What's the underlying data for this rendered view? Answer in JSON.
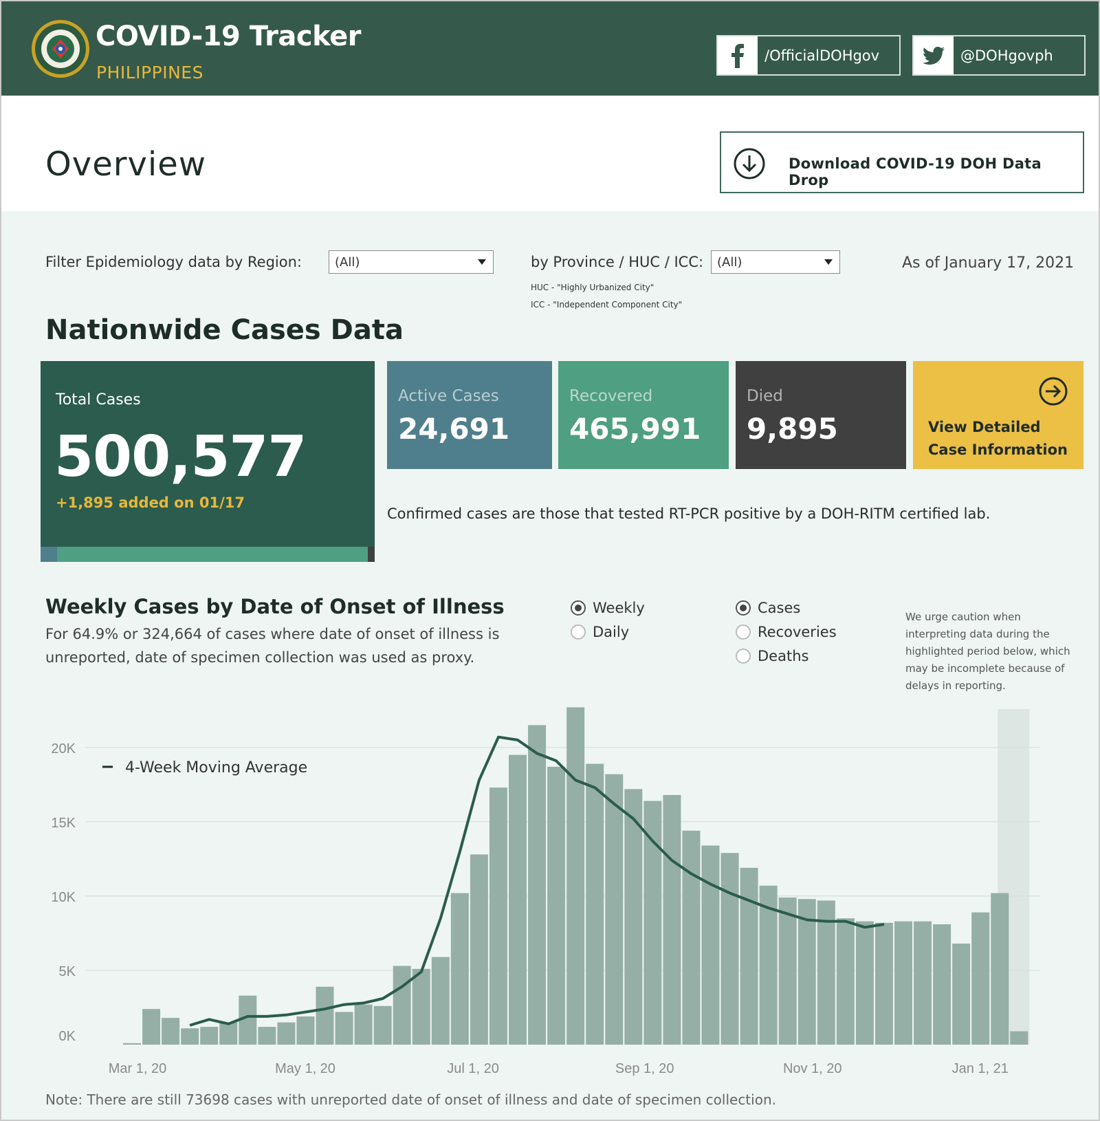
{
  "header": {
    "title": "COVID-19 Tracker",
    "subtitle": "PHILIPPINES",
    "facebook_label": "/OfficialDOHgov",
    "twitter_label": "@DOHgovph"
  },
  "overview": {
    "title": "Overview",
    "download_label": "Download COVID-19 DOH Data Drop"
  },
  "filters": {
    "region_label": "Filter Epidemiology data by Region:",
    "region_value": "(All)",
    "province_label": "by Province / HUC / ICC:",
    "province_value": "(All)",
    "huc_note": "HUC - \"Highly Urbanized City\"",
    "icc_note": "ICC - \"Independent Component City\"",
    "as_of": "As of January 17, 2021"
  },
  "nationwide": {
    "title": "Nationwide Cases Data",
    "total_label": "Total Cases",
    "total_value": "500,577",
    "added_text": "+1,895 added on 01/17",
    "active_label": "Active Cases",
    "active_value": "24,691",
    "recovered_label": "Recovered",
    "recovered_value": "465,991",
    "died_label": "Died",
    "died_value": "9,895",
    "view_label_1": "View Detailed",
    "view_label_2": "Case Information",
    "confirmed_note": "Confirmed cases are those that tested RT-PCR positive by a DOH-RITM certified lab.",
    "composition": {
      "active": 24691,
      "recovered": 465991,
      "died": 9895
    }
  },
  "weekly": {
    "title": "Weekly Cases by Date of Onset of Illness",
    "desc": "For 64.9% or 324,664 of cases where date of onset of illness is unreported, date of specimen collection was used as proxy.",
    "period_options": [
      "Weekly",
      "Daily"
    ],
    "period_selected": "Weekly",
    "metric_options": [
      "Cases",
      "Recoveries",
      "Deaths"
    ],
    "metric_selected": "Cases",
    "caution": "We urge caution when interpreting data during the highlighted period below, which may be incomplete because of delays in reporting.",
    "footnote": "Note: There are still 73698 cases with unreported date of onset of illness and date of specimen collection."
  },
  "colors": {
    "header": "#355a4b",
    "accent_yellow": "#e8b73c",
    "total_card": "#2b5c4d",
    "active": "#4f7f8c",
    "recovered": "#4f9f82",
    "died": "#404040",
    "view": "#ecbf45",
    "bar": "#96afa6",
    "line": "#2b5c4d"
  },
  "chart_data": {
    "type": "bar",
    "title": "Weekly Cases by Date of Onset of Illness",
    "xlabel": "",
    "ylabel": "",
    "ylim": [
      0,
      23000
    ],
    "y_ticks": [
      {
        "value": 0,
        "label": "0K"
      },
      {
        "value": 5000,
        "label": "5K"
      },
      {
        "value": 10000,
        "label": "10K"
      },
      {
        "value": 15000,
        "label": "15K"
      },
      {
        "value": 20000,
        "label": "20K"
      }
    ],
    "x_ticks": [
      {
        "index": 0,
        "label": "Mar 1, 20"
      },
      {
        "index": 8.7,
        "label": "May 1, 20"
      },
      {
        "index": 17.4,
        "label": "Jul 1, 20"
      },
      {
        "index": 26.3,
        "label": "Sep 1, 20"
      },
      {
        "index": 35,
        "label": "Nov 1, 20"
      },
      {
        "index": 43.7,
        "label": "Jan 1, 21"
      }
    ],
    "categories_note": "Weekly bins from Mar 2020 to Jan 2021",
    "values": [
      100,
      2400,
      1800,
      1100,
      1200,
      1500,
      3300,
      1200,
      1500,
      1900,
      3900,
      2200,
      2700,
      2600,
      5300,
      5100,
      5900,
      10200,
      12800,
      17300,
      19500,
      21500,
      18700,
      22700,
      18900,
      18200,
      17200,
      16400,
      16800,
      14400,
      13400,
      12900,
      11900,
      10700,
      9900,
      9800,
      9700,
      8500,
      8300,
      8200,
      8300,
      8300,
      8100,
      6800,
      8900,
      10200,
      900
    ],
    "series": [
      {
        "name": "4-Week Moving Average",
        "type": "line",
        "start_index": 3,
        "values": [
          1300,
          1700,
          1400,
          1900,
          1900,
          2000,
          2200,
          2400,
          2700,
          2800,
          3100,
          3900,
          4900,
          8500,
          13000,
          17800,
          20700,
          20500,
          19600,
          19100,
          17800,
          17300,
          16200,
          15200,
          13700,
          12400,
          11500,
          10800,
          10200,
          9700,
          9200,
          8800,
          8400,
          8300,
          8300,
          7900,
          8100
        ]
      }
    ],
    "highlight_period": {
      "start_index": 45,
      "end_index": 46,
      "note": "possibly incomplete"
    },
    "legend": "top-left"
  },
  "icons": {
    "seal": "doh-seal-logo",
    "facebook": "facebook-icon",
    "twitter": "twitter-icon",
    "download": "download-circle-icon",
    "view": "arrow-right-circle-icon",
    "dropdown": "chevron-down-icon"
  }
}
